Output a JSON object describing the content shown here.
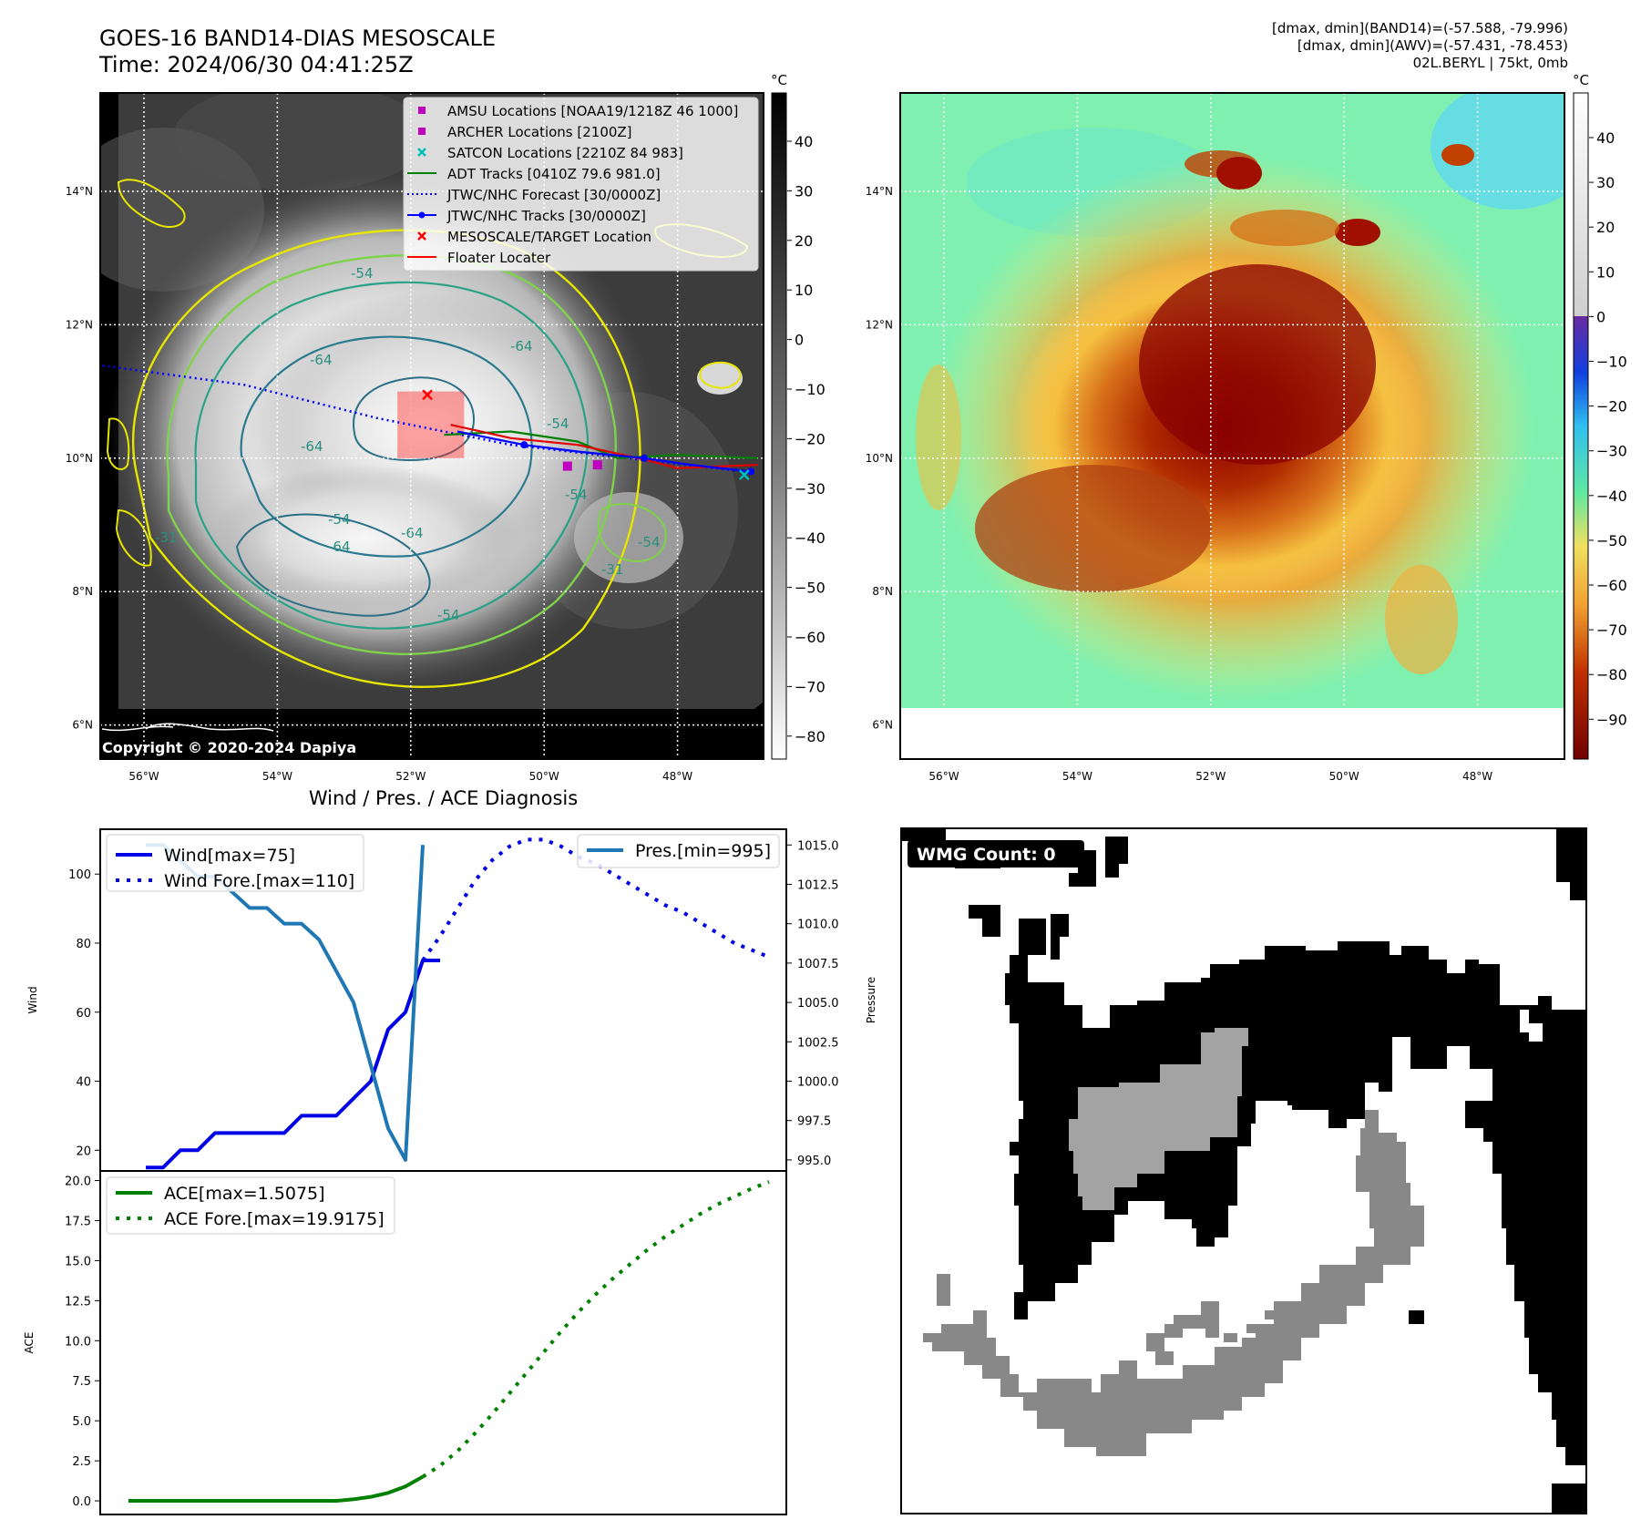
{
  "header": {
    "title_line1": "GOES-16 BAND14-DIAS MESOSCALE",
    "title_line2": "Time: 2024/06/30 04:41:25Z",
    "info_line1": "[dmax, dmin](BAND14)=(-57.588, -79.996)",
    "info_line2": "[dmax, dmin](AWV)=(-57.431, -78.453)",
    "info_line3": "02L.BERYL | 75kt, 0mb"
  },
  "map": {
    "lat_labels": [
      "14°N",
      "12°N",
      "10°N",
      "8°N",
      "6°N"
    ],
    "lon_labels": [
      "56°W",
      "54°W",
      "52°W",
      "50°W",
      "48°W"
    ],
    "copyright": "Copyright © 2020-2024 Dapiya",
    "contour_labels": [
      "-54",
      "-64",
      "-64",
      "-64",
      "-54",
      "-64",
      "-54",
      "-54",
      "-54",
      "-31",
      "-31",
      "-54",
      "-64"
    ],
    "legend": [
      {
        "label": "AMSU Locations [NOAA19/1218Z 46 1000]",
        "symbol": "square",
        "color": "#bf00bf"
      },
      {
        "label": "ARCHER Locations [2100Z]",
        "symbol": "square",
        "color": "#bf00bf"
      },
      {
        "label": "SATCON Locations [2210Z 84 983]",
        "symbol": "x",
        "color": "#00bfbf"
      },
      {
        "label": "ADT Tracks [0410Z 79.6 981.0]",
        "symbol": "line",
        "color": "#008000"
      },
      {
        "label": "JTWC/NHC Forecast [30/0000Z]",
        "symbol": "dotted",
        "color": "#0000ff"
      },
      {
        "label": "JTWC/NHC Tracks [30/0000Z]",
        "symbol": "line-dot",
        "color": "#0000ff"
      },
      {
        "label": "MESOSCALE/TARGET Location",
        "symbol": "x",
        "color": "#ff0000"
      },
      {
        "label": "Floater Locater",
        "symbol": "line",
        "color": "#ff0000"
      }
    ],
    "forecast_dotted": [
      [
        -56.7,
        11.4
      ],
      [
        -54.5,
        11.1
      ],
      [
        -52.5,
        10.6
      ],
      [
        -51,
        10.3
      ],
      [
        -50.5,
        10.2
      ],
      [
        -47,
        9.8
      ]
    ],
    "jtwc_track": [
      [
        -51.3,
        10.4
      ],
      [
        -50.3,
        10.2
      ],
      [
        -49.5,
        10.1
      ],
      [
        -48.5,
        10.0
      ],
      [
        -47.8,
        9.9
      ],
      [
        -46.9,
        9.8
      ]
    ],
    "jtwc_points": [
      [
        -50.3,
        10.2
      ],
      [
        -48.5,
        10.0
      ],
      [
        -46.9,
        9.8
      ]
    ],
    "adt_track": [
      [
        -51.5,
        10.35
      ],
      [
        -50.5,
        10.4
      ],
      [
        -49.5,
        10.25
      ],
      [
        -48.9,
        10.0
      ],
      [
        -48,
        10.05
      ],
      [
        -46.8,
        10.0
      ]
    ],
    "floater_track": [
      [
        -51.4,
        10.5
      ],
      [
        -50.5,
        10.3
      ],
      [
        -49.5,
        10.2
      ],
      [
        -48.5,
        9.98
      ],
      [
        -48,
        9.85
      ],
      [
        -46.8,
        9.9
      ]
    ],
    "floater_box": {
      "lon_min": -52.2,
      "lon_max": -51.2,
      "lat_min": 10.0,
      "lat_max": 11.0
    },
    "target": [
      -51.75,
      10.95
    ],
    "amsu": [
      -49.65,
      9.88
    ],
    "archer": [
      -49.2,
      9.9
    ],
    "satcon": [
      -47.0,
      9.75
    ]
  },
  "colorbar1": {
    "unit": "°C",
    "ticks": [
      "40",
      "30",
      "20",
      "10",
      "0",
      "−10",
      "−20",
      "−30",
      "−40",
      "−50",
      "−60",
      "−70",
      "−80"
    ]
  },
  "colorbar2": {
    "unit": "°C",
    "ticks": [
      "40",
      "30",
      "20",
      "10",
      "0",
      "−10",
      "−20",
      "−30",
      "−40",
      "−50",
      "−60",
      "−70",
      "−80",
      "−90"
    ]
  },
  "diag": {
    "title": "Wind / Pres. / ACE Diagnosis"
  },
  "wmg": {
    "label": "WMG Count: 0"
  },
  "chart_data": [
    {
      "type": "line",
      "title": "Wind / Pres. / ACE Diagnosis",
      "xlabel": "",
      "ylabel": "Wind",
      "y2label": "Pressure",
      "ylim": [
        14,
        113
      ],
      "y2lim": [
        994.3,
        1016.0
      ],
      "yticks": [
        "20",
        "40",
        "60",
        "80",
        "100"
      ],
      "y2ticks": [
        "995.0",
        "997.5",
        "1000.0",
        "1002.5",
        "1005.0",
        "1007.5",
        "1010.0",
        "1012.5",
        "1015.0"
      ],
      "x": [
        0,
        1,
        2,
        3,
        4,
        5,
        6,
        7,
        8,
        9,
        10,
        11,
        12,
        13,
        14,
        15,
        16,
        17,
        18,
        19,
        20,
        21,
        22,
        23,
        24,
        25,
        26,
        27,
        28,
        29,
        30,
        31,
        32,
        33,
        34,
        35,
        36,
        37,
        38
      ],
      "series": [
        {
          "name": "Wind[max=75]",
          "color": "#0000e6",
          "style": "solid",
          "x": [
            1,
            2,
            3,
            4,
            5,
            6,
            7,
            8,
            9,
            10,
            11,
            12,
            13,
            14,
            15,
            16,
            17,
            18
          ],
          "values": [
            15,
            15,
            20,
            20,
            25,
            25,
            25,
            25,
            25,
            30,
            30,
            30,
            35,
            40,
            55,
            60,
            75,
            75
          ]
        },
        {
          "name": "Wind Fore.[max=110]",
          "color": "#0000e6",
          "style": "dotted",
          "x": [
            17,
            18,
            19,
            20,
            21,
            22,
            23,
            24,
            25,
            26,
            27,
            28,
            29,
            30,
            31,
            32,
            33,
            34,
            35,
            36,
            37
          ],
          "values": [
            75,
            82,
            90,
            98,
            104,
            108,
            110,
            110,
            108,
            105,
            103,
            100,
            97,
            94,
            91,
            89,
            86,
            83,
            80,
            78,
            76
          ]
        },
        {
          "name": "Pres.[min=995]",
          "color": "#1f77b4",
          "style": "solid",
          "axis": "right",
          "x": [
            1,
            2,
            3,
            4,
            5,
            6,
            7,
            8,
            9,
            10,
            11,
            12,
            13,
            14,
            15,
            16,
            17
          ],
          "values": [
            1015,
            1015,
            1014,
            1013,
            1013,
            1012,
            1011,
            1011,
            1010,
            1010,
            1009,
            1007,
            1005,
            1001,
            997,
            995,
            1015
          ]
        }
      ]
    },
    {
      "type": "line",
      "ylabel": "ACE",
      "ylim": [
        -0.85,
        20.6
      ],
      "yticks": [
        "0.0",
        "2.5",
        "5.0",
        "7.5",
        "10.0",
        "12.5",
        "15.0",
        "17.5",
        "20.0"
      ],
      "series": [
        {
          "name": "ACE[max=1.5075]",
          "color": "#008000",
          "style": "solid",
          "x": [
            0,
            3,
            6,
            9,
            12,
            13,
            14,
            15,
            16,
            17
          ],
          "values": [
            0,
            0,
            0,
            0,
            0,
            0.1,
            0.25,
            0.5,
            0.9,
            1.5075
          ]
        },
        {
          "name": "ACE Fore.[max=19.9175]",
          "color": "#008000",
          "style": "dotted",
          "x": [
            17,
            18,
            19,
            20,
            21,
            22,
            23,
            24,
            25,
            26,
            27,
            28,
            29,
            30,
            31,
            32,
            33,
            34,
            35,
            36,
            37
          ],
          "values": [
            1.5075,
            2.2,
            3.1,
            4.2,
            5.4,
            6.7,
            8.0,
            9.3,
            10.6,
            11.8,
            12.9,
            13.9,
            14.8,
            15.7,
            16.5,
            17.2,
            17.9,
            18.5,
            19.0,
            19.5,
            19.9175
          ]
        }
      ]
    }
  ]
}
